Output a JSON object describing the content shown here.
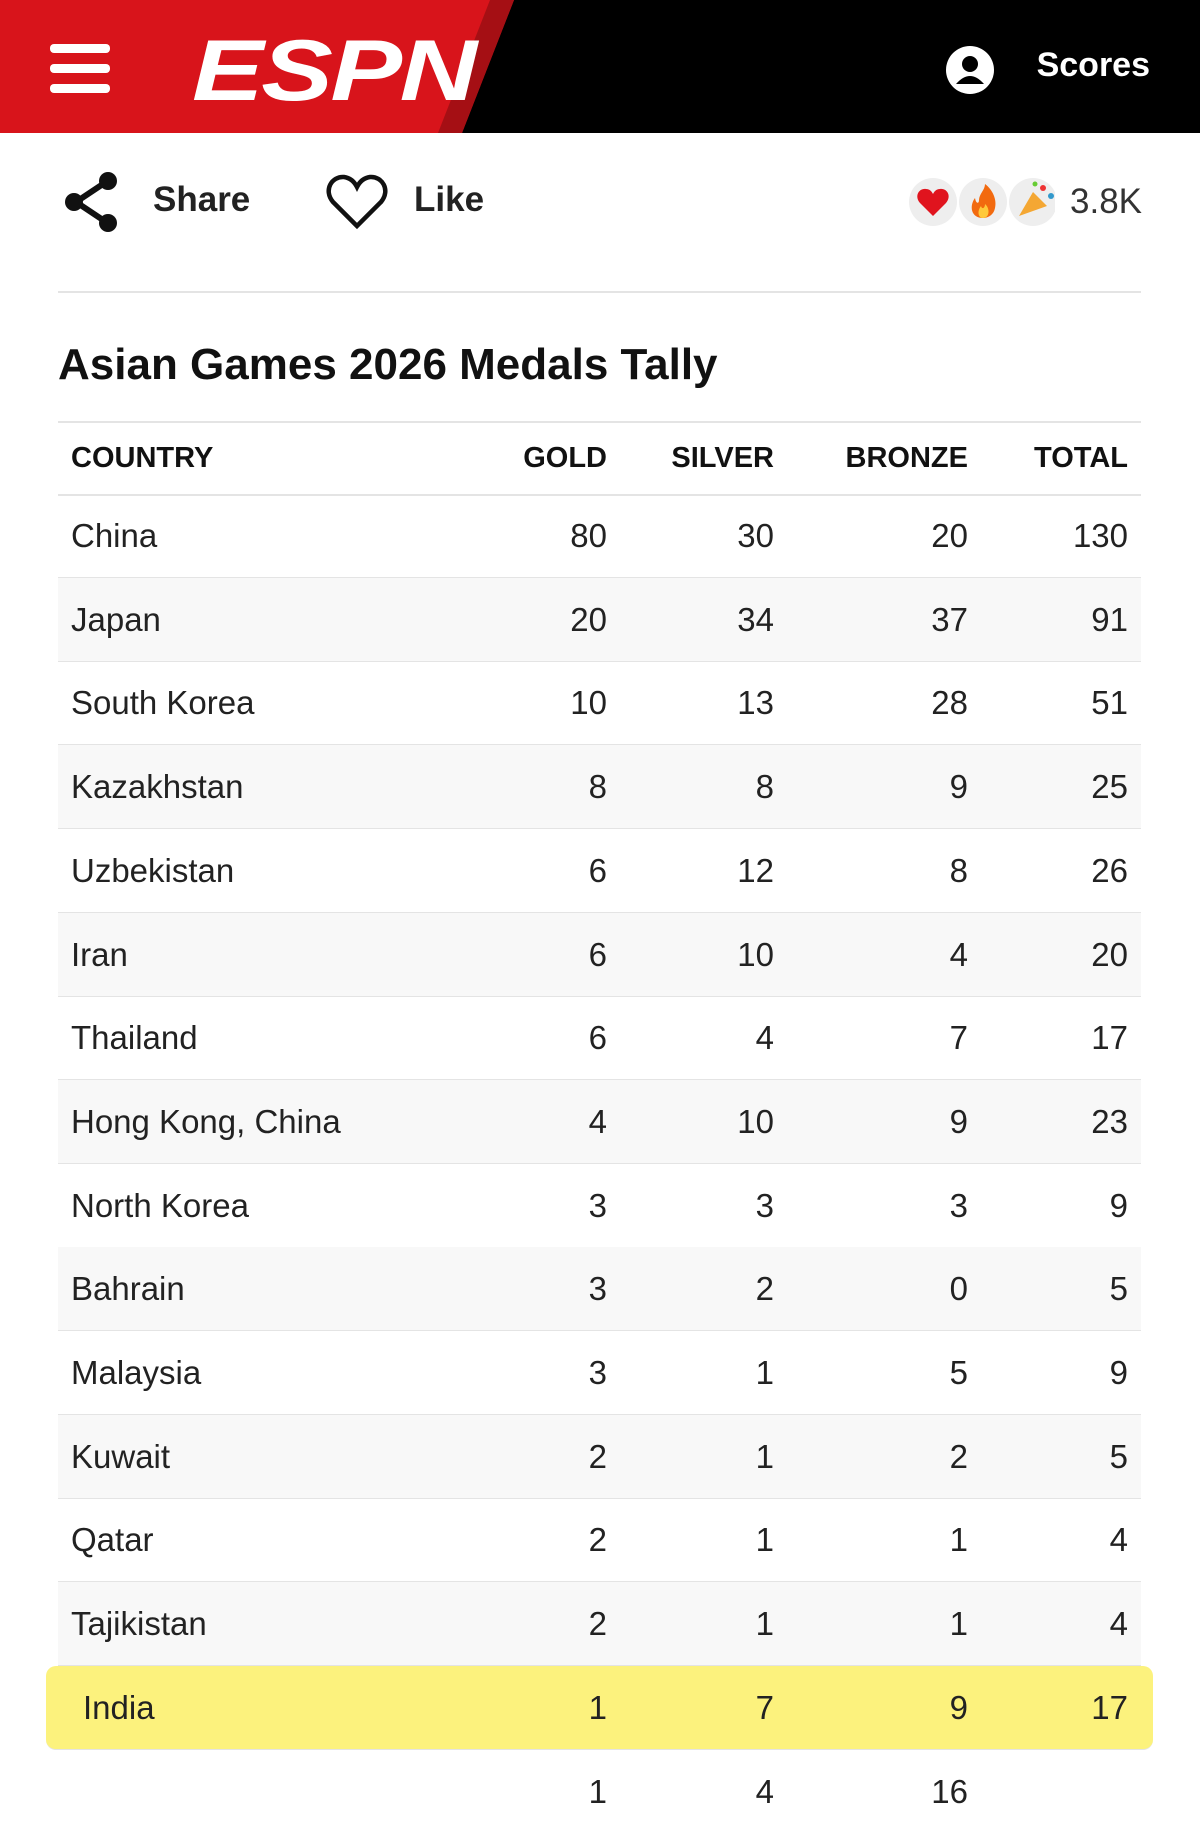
{
  "header": {
    "logo": "ESPN",
    "scores": "Scores"
  },
  "actions": {
    "share": "Share",
    "like": "Like",
    "reactions_count": "3.8K"
  },
  "table": {
    "title": "Asian Games 2026 Medals Tally",
    "columns": [
      "COUNTRY",
      "GOLD",
      "SILVER",
      "BRONZE",
      "TOTAL"
    ],
    "rows": [
      [
        "China",
        "80",
        "30",
        "20",
        "130"
      ],
      [
        "Japan",
        "20",
        "34",
        "37",
        "91"
      ],
      [
        "South Korea",
        "10",
        "13",
        "28",
        "51"
      ],
      [
        "Kazakhstan",
        "8",
        "8",
        "9",
        "25"
      ],
      [
        "Uzbekistan",
        "6",
        "12",
        "8",
        "26"
      ],
      [
        "Iran",
        "6",
        "10",
        "4",
        "20"
      ],
      [
        "Thailand",
        "6",
        "4",
        "7",
        "17"
      ],
      [
        "Hong Kong, China",
        "4",
        "10",
        "9",
        "23"
      ],
      [
        "North Korea",
        "3",
        "3",
        "3",
        "9"
      ],
      [
        "Bahrain",
        "3",
        "2",
        "0",
        "5"
      ],
      [
        "Malaysia",
        "3",
        "1",
        "5",
        "9"
      ],
      [
        "Kuwait",
        "2",
        "1",
        "2",
        "5"
      ],
      [
        "Qatar",
        "2",
        "1",
        "1",
        "4"
      ],
      [
        "Tajikistan",
        "2",
        "1",
        "1",
        "4"
      ],
      [
        "India",
        "1",
        "7",
        "9",
        "17"
      ]
    ],
    "highlighted_row": 14,
    "partial_row": [
      "1",
      "4",
      "16"
    ]
  }
}
